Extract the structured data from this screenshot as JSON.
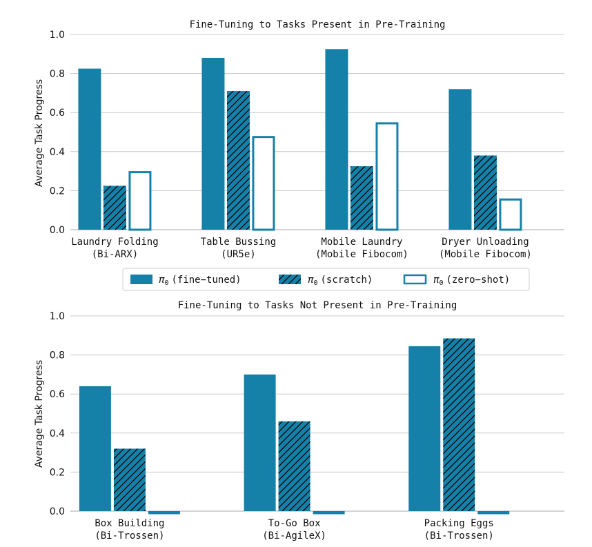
{
  "colors": {
    "accent": "#1580a8",
    "grid": "#c8c8c8",
    "text": "#111111",
    "hatch": "#000000"
  },
  "legend": {
    "items": [
      {
        "prefix": "π",
        "sub": "0",
        "label": "(fine−tuned)",
        "style": "solid"
      },
      {
        "prefix": "π",
        "sub": "0",
        "label": "(scratch)",
        "style": "hatched"
      },
      {
        "prefix": "π",
        "sub": "0",
        "label": "(zero−shot)",
        "style": "outline"
      }
    ]
  },
  "chart_data": [
    {
      "type": "bar",
      "title": "Fine-Tuning to Tasks Present in Pre-Training",
      "ylabel": "Average Task Progress",
      "xlabel": "",
      "ylim": [
        0,
        1.0
      ],
      "yticks": [
        "0.0",
        "0.2",
        "0.4",
        "0.6",
        "0.8",
        "1.0"
      ],
      "grid": true,
      "categories": [
        [
          "Laundry Folding",
          "(Bi-ARX)"
        ],
        [
          "Table Bussing",
          "(UR5e)"
        ],
        [
          "Mobile Laundry",
          "(Mobile Fibocom)"
        ],
        [
          "Dryer Unloading",
          "(Mobile Fibocom)"
        ]
      ],
      "series": [
        {
          "name": "π0 (fine−tuned)",
          "style": "solid",
          "values": [
            0.825,
            0.88,
            0.925,
            0.72
          ]
        },
        {
          "name": "π0 (scratch)",
          "style": "hatched",
          "values": [
            0.225,
            0.71,
            0.325,
            0.38
          ]
        },
        {
          "name": "π0 (zero−shot)",
          "style": "outline",
          "values": [
            0.3,
            0.48,
            0.55,
            0.16
          ]
        }
      ]
    },
    {
      "type": "bar",
      "title": "Fine-Tuning to Tasks Not Present in Pre-Training",
      "ylabel": "Average Task Progress",
      "xlabel": "",
      "ylim": [
        0,
        1.0
      ],
      "yticks": [
        "0.0",
        "0.2",
        "0.4",
        "0.6",
        "0.8",
        "1.0"
      ],
      "grid": true,
      "categories": [
        [
          "Box Building",
          "(Bi-Trossen)"
        ],
        [
          "To-Go Box",
          "(Bi-AgileX)"
        ],
        [
          "Packing Eggs",
          "(Bi-Trossen)"
        ]
      ],
      "series": [
        {
          "name": "π0 (fine−tuned)",
          "style": "solid",
          "values": [
            0.64,
            0.7,
            0.845
          ]
        },
        {
          "name": "π0 (scratch)",
          "style": "hatched",
          "values": [
            0.32,
            0.46,
            0.885
          ]
        },
        {
          "name": "π0 (zero−shot)",
          "style": "outline",
          "values": [
            0.0,
            0.0,
            0.0
          ]
        }
      ]
    }
  ]
}
